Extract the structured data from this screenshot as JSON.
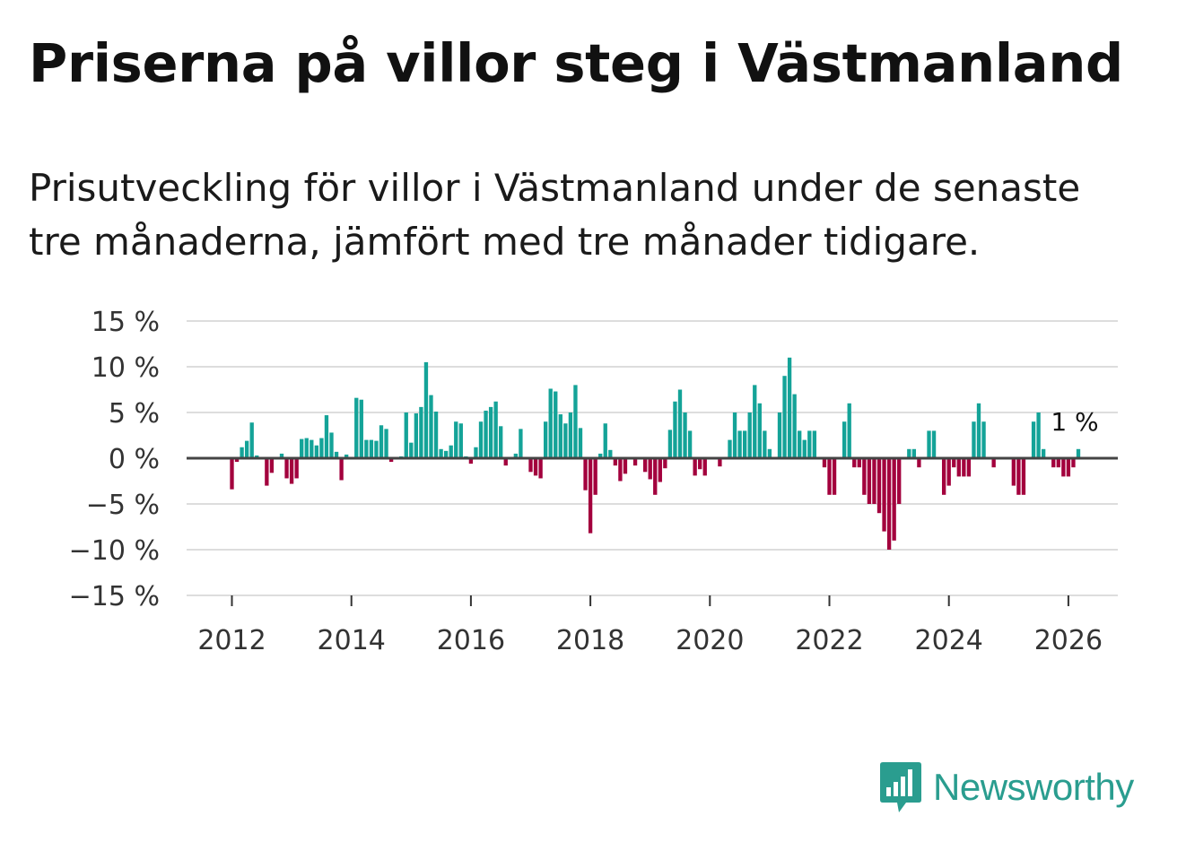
{
  "title": "Priserna på villor steg i Västmanland",
  "subtitle": "Prisutveckling för villor i Västmanland under de senaste tre månaderna, jämfört med tre månader tidigare.",
  "brand": "Newsworthy",
  "colors": {
    "positive": "#14a398",
    "negative": "#a3003d",
    "grid": "#dddddd",
    "zero": "#444444",
    "text": "#111111"
  },
  "chart_data": {
    "type": "bar",
    "title": "",
    "xlabel": "",
    "ylabel": "",
    "ylim": [
      -15,
      15
    ],
    "yticks": [
      15,
      10,
      5,
      0,
      -5,
      -10,
      -15
    ],
    "ytick_labels": [
      "15 %",
      "10 %",
      "5 %",
      "0 %",
      "−5 %",
      "−10 %",
      "−15 %"
    ],
    "xticks": [
      "2012",
      "2014",
      "2016",
      "2018",
      "2020",
      "2022",
      "2024",
      "2026"
    ],
    "start": "2012-01",
    "series": [
      {
        "name": "Prisutveckling",
        "values": [
          -3.4,
          -0.4,
          1.2,
          1.9,
          3.9,
          0.3,
          0.1,
          -3.0,
          -1.6,
          0.1,
          0.5,
          -2.2,
          -2.8,
          -2.2,
          2.1,
          2.2,
          2.0,
          1.4,
          2.2,
          4.7,
          2.8,
          0.7,
          -2.4,
          0.4,
          0.1,
          6.6,
          6.4,
          2.0,
          2.0,
          1.9,
          3.6,
          3.2,
          -0.4,
          0.1,
          0.2,
          5.0,
          1.7,
          4.9,
          5.6,
          10.5,
          6.9,
          5.1,
          1.0,
          0.8,
          1.4,
          4.0,
          3.8,
          0.2,
          -0.6,
          1.2,
          4.0,
          5.2,
          5.6,
          6.2,
          3.5,
          -0.8,
          0.1,
          0.5,
          3.2,
          0.1,
          -1.5,
          -1.9,
          -2.2,
          4.0,
          7.6,
          7.3,
          4.8,
          3.8,
          5.0,
          8.0,
          3.3,
          -3.5,
          -8.2,
          -4.0,
          0.5,
          3.8,
          0.9,
          -0.8,
          -2.5,
          -1.7,
          0.1,
          -0.8,
          0.1,
          -1.5,
          -2.3,
          -4.0,
          -2.6,
          -1.1,
          3.1,
          6.2,
          7.5,
          5.0,
          3.0,
          -1.9,
          -1.2,
          -1.9,
          0.1,
          0.1,
          -0.9,
          0.1,
          2.0,
          5.0,
          3.0,
          3.0,
          5.0,
          8.0,
          6.0,
          3.0,
          1.0,
          0.1,
          5.0,
          9.0,
          11.0,
          7.0,
          3.0,
          2.0,
          3.0,
          3.0,
          0.1,
          -1.0,
          -4.0,
          -4.0,
          0.1,
          4.0,
          6.0,
          -1.0,
          -1.0,
          -4.0,
          -5.0,
          -5.0,
          -6.0,
          -8.0,
          -10.0,
          -9.0,
          -5.0,
          0.1,
          1.0,
          1.0,
          -1.0,
          0.1,
          3.0,
          3.0,
          0.1,
          -4.0,
          -3.0,
          -1.0,
          -2.0,
          -2.0,
          -2.0,
          4.0,
          6.0,
          4.0,
          0.1,
          -1.0,
          0.1,
          0.1,
          0.1,
          -3.0,
          -4.0,
          -4.0,
          0.1,
          4.0,
          5.0,
          1.0,
          0.1,
          -1.0,
          -1.0,
          -2.0,
          -2.0,
          -1.0,
          1.0
        ]
      }
    ],
    "annotation": "1 %"
  }
}
